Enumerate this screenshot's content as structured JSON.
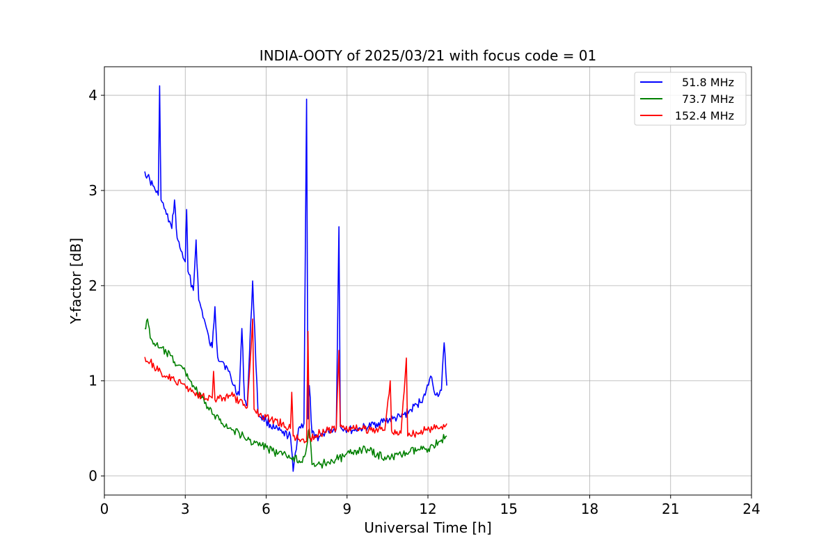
{
  "chart_data": {
    "type": "line",
    "title": "INDIA-OOTY of 2025/03/21 with focus code = 01",
    "xlabel": "Universal Time [h]",
    "ylabel": "Y-factor [dB]",
    "xlim": [
      0,
      24
    ],
    "ylim": [
      -0.2,
      4.3
    ],
    "xticks": [
      0,
      3,
      6,
      9,
      12,
      15,
      18,
      21,
      24
    ],
    "xtick_labels": [
      "0",
      "3",
      "6",
      "9",
      "12",
      "15",
      "18",
      "21",
      "24"
    ],
    "yticks": [
      0,
      1,
      2,
      3,
      4
    ],
    "ytick_labels": [
      "0",
      "1",
      "2",
      "3",
      "4"
    ],
    "grid": true,
    "legend_position": "upper right",
    "series": [
      {
        "name": "51.8 MHz",
        "color": "#0000ff",
        "x": [
          1.5,
          1.6,
          1.8,
          2.0,
          2.05,
          2.1,
          2.3,
          2.5,
          2.6,
          2.7,
          2.8,
          3.0,
          3.05,
          3.1,
          3.3,
          3.4,
          3.5,
          3.7,
          3.9,
          4.0,
          4.1,
          4.2,
          4.4,
          4.6,
          4.8,
          5.0,
          5.1,
          5.2,
          5.3,
          5.5,
          5.7,
          6.0,
          6.3,
          6.6,
          6.9,
          7.0,
          7.2,
          7.4,
          7.5,
          7.55,
          7.6,
          7.7,
          7.8,
          8.0,
          8.3,
          8.6,
          8.7,
          8.75,
          8.9,
          9.2,
          9.5,
          9.8,
          10.1,
          10.4,
          10.7,
          11.0,
          11.3,
          11.6,
          11.9,
          12.1,
          12.3,
          12.5,
          12.6,
          12.7
        ],
        "y": [
          3.2,
          3.15,
          3.05,
          2.95,
          4.1,
          2.9,
          2.75,
          2.6,
          2.9,
          2.5,
          2.4,
          2.25,
          2.8,
          2.15,
          1.95,
          2.48,
          1.85,
          1.65,
          1.4,
          1.35,
          1.78,
          1.25,
          1.2,
          1.1,
          0.95,
          0.85,
          1.55,
          0.8,
          0.75,
          2.05,
          0.65,
          0.58,
          0.5,
          0.45,
          0.42,
          0.05,
          0.5,
          0.55,
          3.96,
          0.6,
          0.95,
          0.45,
          0.4,
          0.42,
          0.48,
          0.5,
          2.62,
          0.52,
          0.5,
          0.48,
          0.5,
          0.52,
          0.55,
          0.58,
          0.6,
          0.62,
          0.68,
          0.75,
          0.85,
          1.05,
          0.85,
          0.9,
          1.4,
          0.95
        ]
      },
      {
        "name": "73.7 MHz",
        "color": "#008000",
        "x": [
          1.5,
          1.6,
          1.7,
          2.0,
          2.3,
          2.6,
          3.0,
          3.3,
          3.6,
          4.0,
          4.3,
          4.6,
          5.0,
          5.3,
          5.6,
          6.0,
          6.3,
          6.6,
          7.0,
          7.3,
          7.5,
          7.6,
          7.7,
          7.8,
          8.0,
          8.3,
          8.6,
          8.9,
          9.2,
          9.5,
          9.8,
          10.1,
          10.4,
          10.7,
          11.0,
          11.3,
          11.6,
          11.9,
          12.2,
          12.5,
          12.7
        ],
        "y": [
          1.55,
          1.65,
          1.45,
          1.35,
          1.3,
          1.2,
          1.1,
          0.95,
          0.82,
          0.65,
          0.6,
          0.5,
          0.45,
          0.38,
          0.35,
          0.3,
          0.25,
          0.22,
          0.2,
          0.15,
          0.3,
          0.5,
          0.12,
          0.1,
          0.12,
          0.15,
          0.18,
          0.2,
          0.25,
          0.28,
          0.27,
          0.22,
          0.2,
          0.2,
          0.22,
          0.25,
          0.27,
          0.28,
          0.32,
          0.38,
          0.42
        ]
      },
      {
        "name": "152.4 MHz",
        "color": "#ff0000",
        "x": [
          1.5,
          1.7,
          2.0,
          2.3,
          2.6,
          3.0,
          3.3,
          3.6,
          4.0,
          4.05,
          4.1,
          4.4,
          4.7,
          5.0,
          5.3,
          5.5,
          5.55,
          5.6,
          6.0,
          6.3,
          6.6,
          6.9,
          6.95,
          7.0,
          7.3,
          7.5,
          7.55,
          7.6,
          7.8,
          8.0,
          8.3,
          8.6,
          8.7,
          8.75,
          8.9,
          9.2,
          9.5,
          9.8,
          10.1,
          10.4,
          10.6,
          10.65,
          10.7,
          11.0,
          11.2,
          11.25,
          11.3,
          11.6,
          11.9,
          12.2,
          12.5,
          12.7
        ],
        "y": [
          1.25,
          1.2,
          1.1,
          1.05,
          1.0,
          0.95,
          0.88,
          0.85,
          0.82,
          1.1,
          0.8,
          0.82,
          0.85,
          0.78,
          0.72,
          1.65,
          0.7,
          0.68,
          0.62,
          0.58,
          0.55,
          0.5,
          0.88,
          0.42,
          0.38,
          0.36,
          1.52,
          0.4,
          0.42,
          0.45,
          0.48,
          0.5,
          1.32,
          0.52,
          0.5,
          0.5,
          0.5,
          0.48,
          0.5,
          0.48,
          1.0,
          0.48,
          0.45,
          0.45,
          1.24,
          0.42,
          0.45,
          0.45,
          0.48,
          0.5,
          0.52,
          0.55
        ]
      }
    ]
  }
}
